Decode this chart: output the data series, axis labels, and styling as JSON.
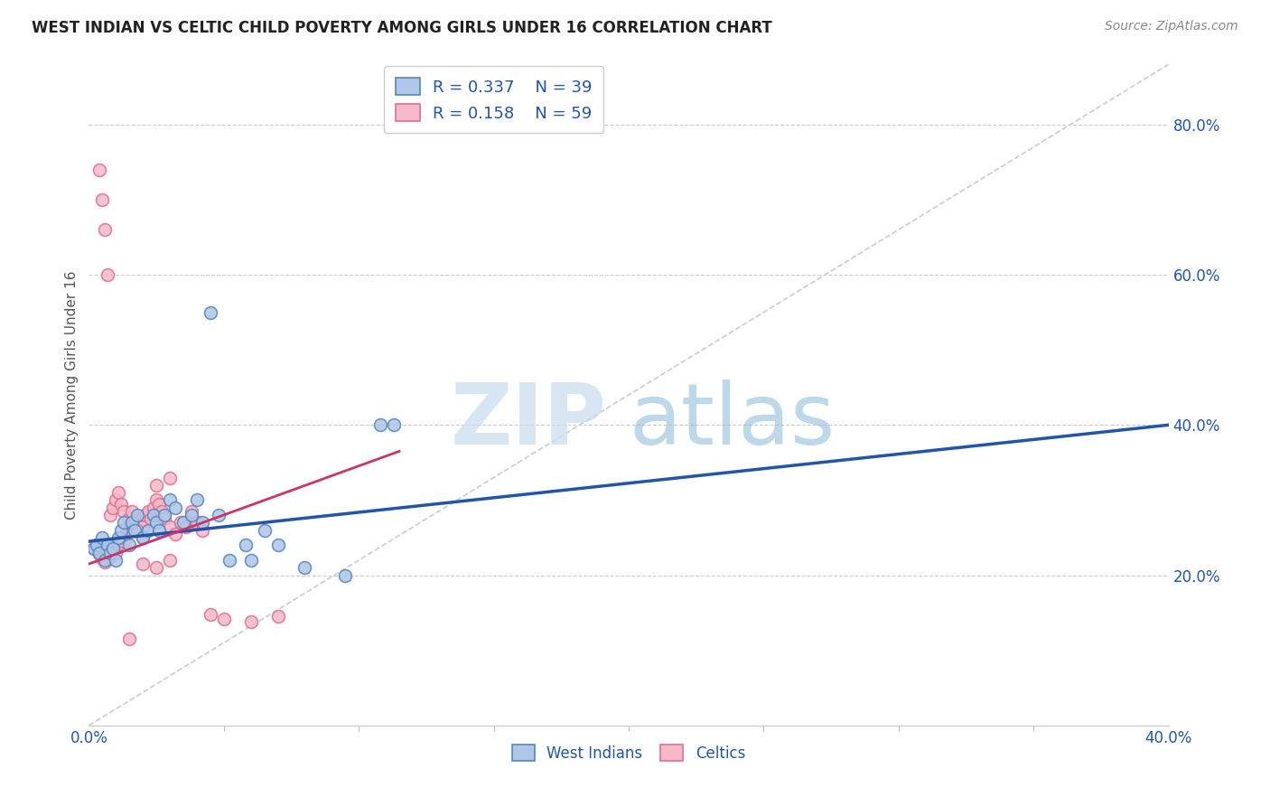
{
  "title": "WEST INDIAN VS CELTIC CHILD POVERTY AMONG GIRLS UNDER 16 CORRELATION CHART",
  "source": "Source: ZipAtlas.com",
  "ylabel": "Child Poverty Among Girls Under 16",
  "xlim": [
    0.0,
    0.4
  ],
  "ylim": [
    0.0,
    0.88
  ],
  "xtick_positions": [
    0.0,
    0.4
  ],
  "xtick_labels": [
    "0.0%",
    "40.0%"
  ],
  "yticks_right": [
    0.2,
    0.4,
    0.6,
    0.8
  ],
  "west_indian_R": 0.337,
  "west_indian_N": 39,
  "celtic_R": 0.158,
  "celtic_N": 59,
  "blue_fill": "#AEC6E8",
  "pink_fill": "#F4B8C8",
  "blue_edge": "#5588BB",
  "pink_edge": "#E07090",
  "blue_line_color": "#2255AA",
  "pink_line_color": "#CC3366",
  "ref_line_color": "#CCCCCC",
  "title_color": "#333333",
  "legend_text_color": "#2255AA",
  "axis_label_color": "#555555",
  "tick_color": "#2255AA",
  "background_color": "#FFFFFF",
  "wi_line_x0": 0.0,
  "wi_line_y0": 0.245,
  "wi_line_x1": 0.4,
  "wi_line_y1": 0.4,
  "ce_line_x0": 0.0,
  "ce_line_y0": 0.215,
  "ce_line_x1": 0.115,
  "ce_line_y1": 0.365,
  "ref_line_x0": 0.0,
  "ref_line_y0": 0.0,
  "ref_line_x1": 0.4,
  "ref_line_y1": 0.88,
  "wi_scatter_x": [
    0.002,
    0.003,
    0.004,
    0.005,
    0.006,
    0.007,
    0.008,
    0.009,
    0.01,
    0.011,
    0.012,
    0.013,
    0.015,
    0.016,
    0.017,
    0.018,
    0.02,
    0.022,
    0.024,
    0.025,
    0.026,
    0.028,
    0.03,
    0.032,
    0.035,
    0.038,
    0.04,
    0.042,
    0.045,
    0.048,
    0.052,
    0.058,
    0.065,
    0.108,
    0.113,
    0.095,
    0.06,
    0.07,
    0.08
  ],
  "wi_scatter_y": [
    0.235,
    0.24,
    0.23,
    0.25,
    0.22,
    0.24,
    0.23,
    0.235,
    0.22,
    0.25,
    0.26,
    0.27,
    0.24,
    0.27,
    0.26,
    0.28,
    0.25,
    0.26,
    0.28,
    0.27,
    0.26,
    0.28,
    0.3,
    0.29,
    0.27,
    0.28,
    0.3,
    0.27,
    0.55,
    0.28,
    0.22,
    0.24,
    0.26,
    0.4,
    0.4,
    0.2,
    0.22,
    0.24,
    0.21
  ],
  "ce_scatter_x": [
    0.002,
    0.003,
    0.004,
    0.005,
    0.006,
    0.007,
    0.008,
    0.009,
    0.01,
    0.011,
    0.012,
    0.013,
    0.014,
    0.015,
    0.016,
    0.017,
    0.018,
    0.019,
    0.02,
    0.021,
    0.022,
    0.023,
    0.024,
    0.025,
    0.026,
    0.027,
    0.028,
    0.03,
    0.032,
    0.034,
    0.036,
    0.038,
    0.04,
    0.042,
    0.004,
    0.005,
    0.006,
    0.007,
    0.008,
    0.009,
    0.01,
    0.011,
    0.012,
    0.013,
    0.015,
    0.016,
    0.018,
    0.02,
    0.025,
    0.03,
    0.038,
    0.045,
    0.05,
    0.06,
    0.07,
    0.02,
    0.025,
    0.03,
    0.015
  ],
  "ce_scatter_y": [
    0.235,
    0.24,
    0.228,
    0.222,
    0.218,
    0.232,
    0.225,
    0.238,
    0.23,
    0.242,
    0.25,
    0.245,
    0.255,
    0.265,
    0.26,
    0.27,
    0.275,
    0.268,
    0.265,
    0.28,
    0.285,
    0.275,
    0.29,
    0.3,
    0.295,
    0.285,
    0.275,
    0.265,
    0.255,
    0.27,
    0.265,
    0.275,
    0.27,
    0.26,
    0.74,
    0.7,
    0.66,
    0.6,
    0.28,
    0.29,
    0.3,
    0.31,
    0.295,
    0.285,
    0.275,
    0.285,
    0.26,
    0.25,
    0.32,
    0.33,
    0.285,
    0.148,
    0.142,
    0.138,
    0.145,
    0.215,
    0.21,
    0.22,
    0.115
  ]
}
